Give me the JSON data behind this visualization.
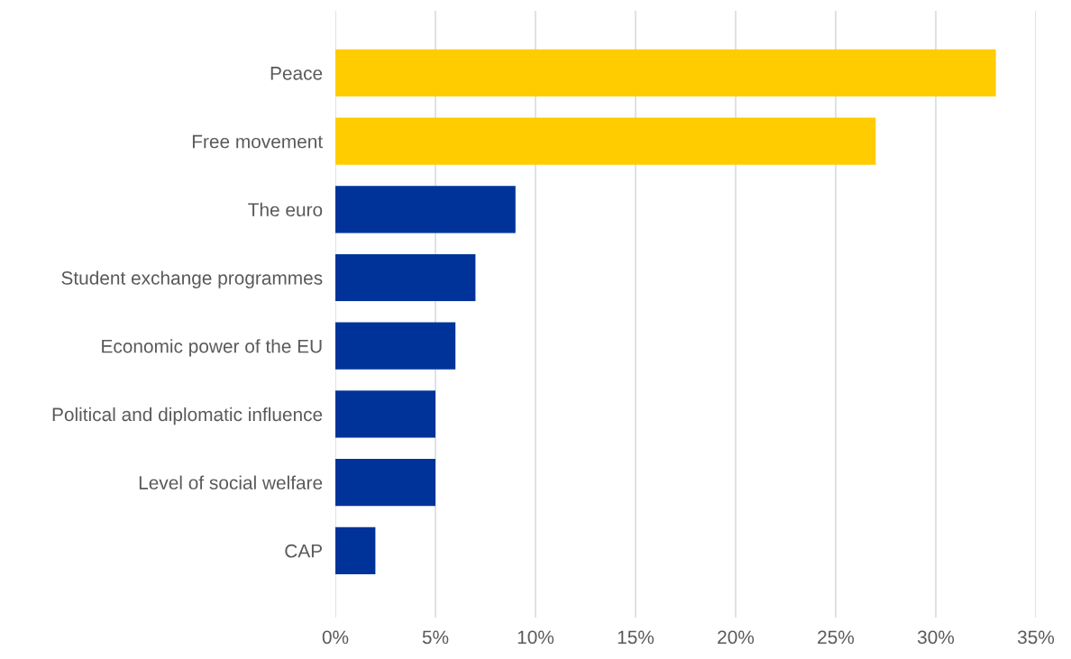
{
  "chart_data": {
    "type": "bar",
    "orientation": "horizontal",
    "categories": [
      "Peace",
      "Free movement",
      "The euro",
      "Student exchange programmes",
      "Economic power of the EU",
      "Political and diplomatic influence",
      "Level of social welfare",
      "CAP"
    ],
    "values": [
      33,
      27,
      9,
      7,
      6,
      5,
      5,
      2
    ],
    "colors": [
      "#ffcc00",
      "#ffcc00",
      "#003399",
      "#003399",
      "#003399",
      "#003399",
      "#003399",
      "#003399"
    ],
    "xlim": [
      0,
      35
    ],
    "xticks": [
      {
        "value": 0,
        "label": "0%"
      },
      {
        "value": 5,
        "label": "5%"
      },
      {
        "value": 10,
        "label": "10%"
      },
      {
        "value": 15,
        "label": "15%"
      },
      {
        "value": 20,
        "label": "20%"
      },
      {
        "value": 25,
        "label": "25%"
      },
      {
        "value": 30,
        "label": "30%"
      },
      {
        "value": 35,
        "label": "35%"
      }
    ],
    "grid": "x",
    "legend": false
  }
}
